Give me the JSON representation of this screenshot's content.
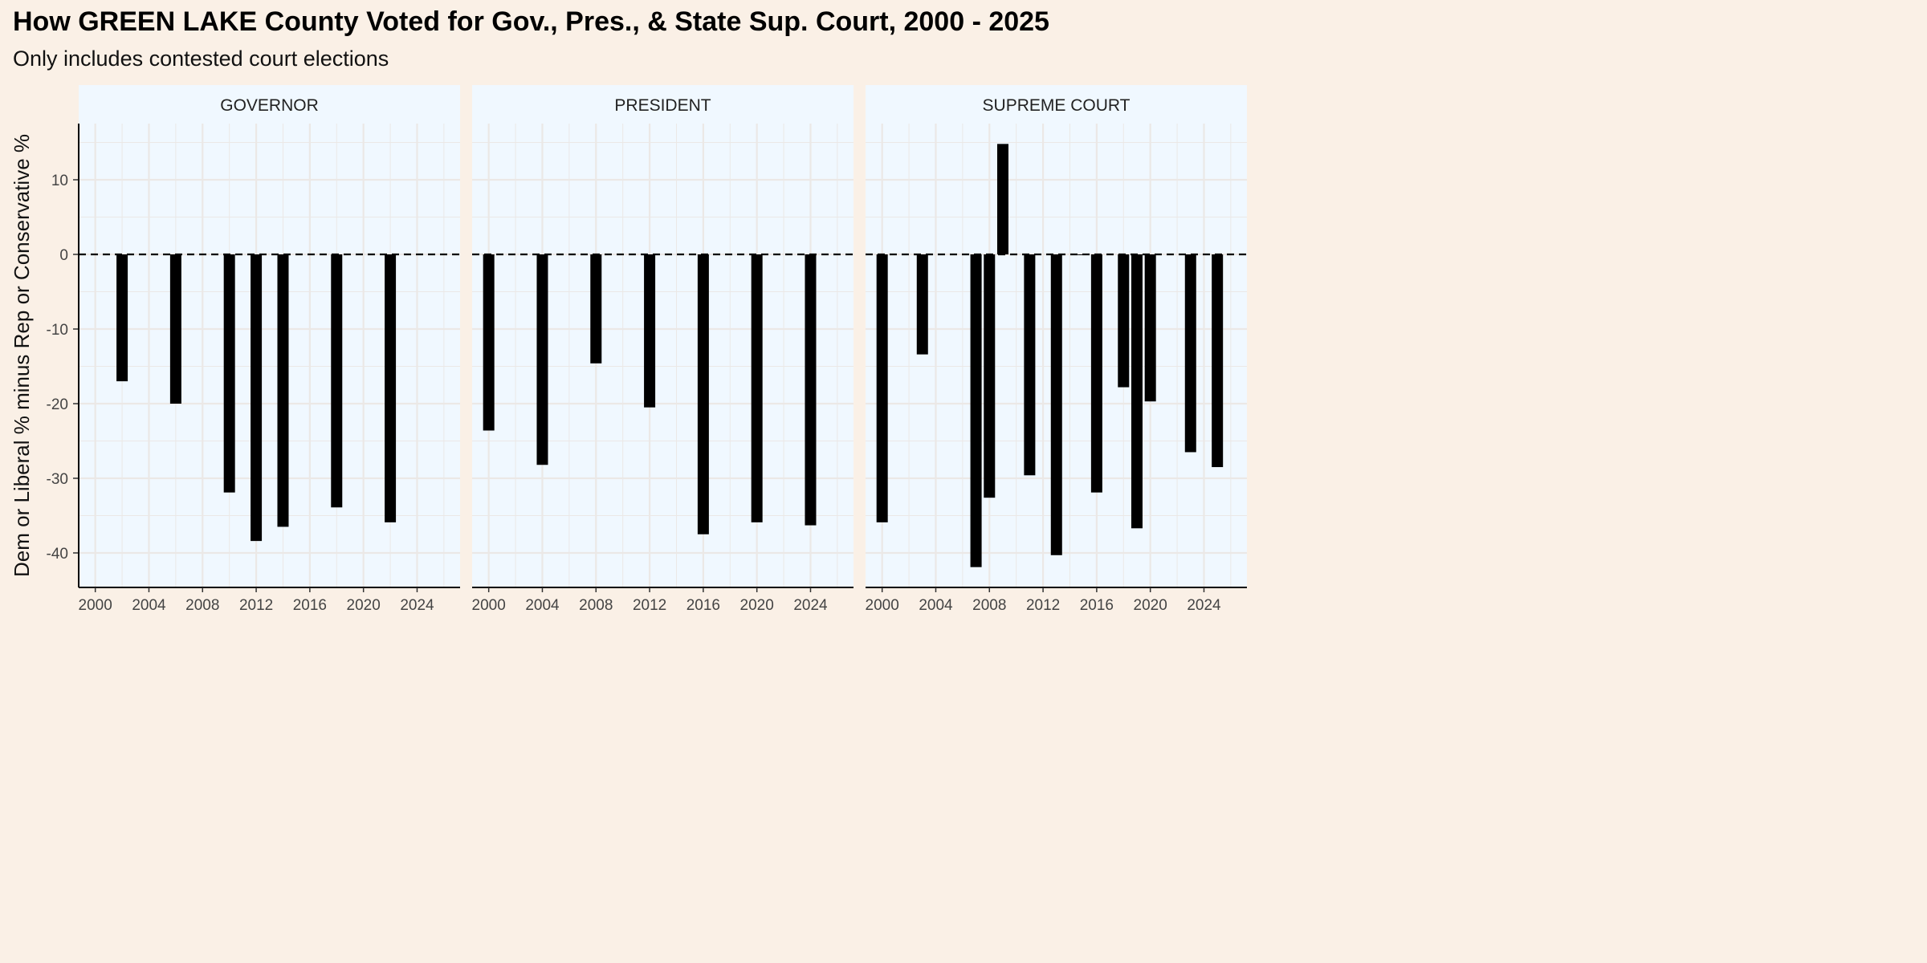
{
  "title": "How GREEN LAKE County Voted for Gov., Pres., & State Sup. Court, 2000 - 2025",
  "subtitle": "Only includes contested court elections",
  "colors": {
    "background": "#faf0e6",
    "panel": "#f0f8ff",
    "bar": "#000000",
    "grid": "#ebe8e6"
  },
  "chart_data": {
    "type": "bar",
    "title": "How GREEN LAKE County Voted for Gov., Pres., & State Sup. Court, 2000 - 2025",
    "subtitle": "Only includes contested court elections",
    "xlabel": "",
    "ylabel": "Dem or Liberal % minus Rep or Conservative %",
    "xlim": [
      1999,
      2026
    ],
    "ylim": [
      -43,
      17
    ],
    "x_ticks": [
      2000,
      2004,
      2008,
      2012,
      2016,
      2020,
      2024
    ],
    "y_ticks": [
      10,
      0,
      -10,
      -20,
      -30,
      -40
    ],
    "reference_line": {
      "y": 0,
      "style": "dashed"
    },
    "grid": true,
    "facets": [
      {
        "name": "GOVERNOR",
        "x": [
          2002,
          2006,
          2010,
          2012,
          2014,
          2018,
          2022
        ],
        "values": [
          -17.0,
          -20.0,
          -31.9,
          -38.4,
          -36.5,
          -33.9,
          -35.9
        ]
      },
      {
        "name": "PRESIDENT",
        "x": [
          2000,
          2004,
          2008,
          2012,
          2016,
          2020,
          2024
        ],
        "values": [
          -23.6,
          -28.2,
          -14.6,
          -20.5,
          -37.5,
          -35.9,
          -36.3
        ]
      },
      {
        "name": "SUPREME COURT",
        "x": [
          2000,
          2003,
          2007,
          2008,
          2009,
          2011,
          2013,
          2015,
          2016,
          2018,
          2019,
          2020,
          2023,
          2025
        ],
        "values": [
          -35.9,
          -13.4,
          -41.9,
          -32.6,
          14.8,
          -29.6,
          -40.3,
          -0.1,
          -31.9,
          -17.8,
          -36.7,
          -19.7,
          -26.5,
          -28.5
        ]
      }
    ]
  }
}
